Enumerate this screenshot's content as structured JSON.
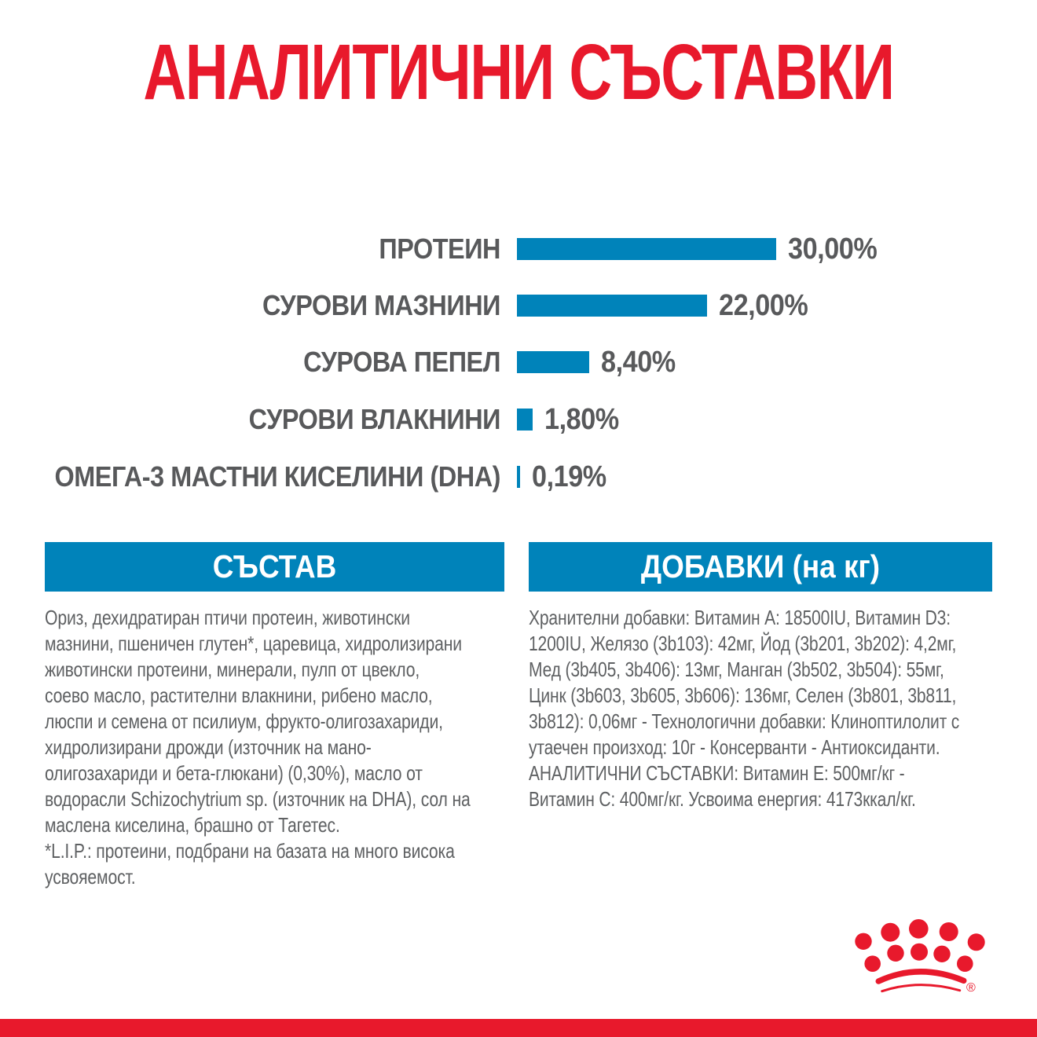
{
  "title": "АНАЛИТИЧНИ СЪСТАВКИ",
  "colors": {
    "brand_red": "#e8192c",
    "bar_blue": "#0083ba",
    "label_gray": "#58595b",
    "body_gray": "#5f6163",
    "header_text": "#ffffff"
  },
  "chart_data": {
    "type": "bar",
    "orientation": "horizontal",
    "title": "АНАЛИТИЧНИ СЪСТАВКИ",
    "categories": [
      "ПРОТЕИН",
      "СУРОВИ МАЗНИНИ",
      "СУРОВА ПЕПЕЛ",
      "СУРОВИ ВЛАКНИНИ",
      "ОМЕГА-3 МАСТНИ КИСЕЛИНИ (DHA)"
    ],
    "values": [
      30.0,
      22.0,
      8.4,
      1.8,
      0.19
    ],
    "value_labels": [
      "30,00%",
      "22,00%",
      "8,40%",
      "1,80%",
      "0,19%"
    ],
    "unit": "%",
    "xlim": [
      0,
      30
    ],
    "bar_color": "#0083ba",
    "grid": false,
    "legend": false
  },
  "sections": {
    "composition": {
      "header": "СЪСТАВ",
      "body": "Ориз, дехидратиран птичи протеин, животински\nмазнини, пшеничен глутен*, царевица, хидролизирани\nживотински протеини, минерали, пулп от цвекло,\nсоево масло, растителни влакнини, рибено масло,\nлюспи и семена от псилиум, фрукто-олигозахариди,\nхидролизирани дрожди (източник на мано-\nолигозахариди и бета-глюкани) (0,30%), масло от\nводорасли Schizochytrium sp. (източник на DHA), сол на\nмаслена киселина, брашно от Тагетес.\n*L.I.P.: протеини, подбрани на базата на много висока\nусвояемост."
    },
    "additives": {
      "header": "ДОБАВКИ (на кг)",
      "body": "Хранителни добавки: Витамин A: 18500IU, Витамин D3:\n1200IU, Желязо (3b103): 42мг, Йод (3b201, 3b202): 4,2мг,\nМед (3b405, 3b406): 13мг, Манган (3b502, 3b504): 55мг,\nЦинк (3b603, 3b605, 3b606): 136мг, Селен (3b801, 3b811,\n3b812): 0,06мг - Технологични добавки: Клиноптилолит с\nутаечен произход: 10г - Консерванти - Антиоксиданти.\nАНАЛИТИЧНИ СЪСТАВКИ: Витамин E: 500мг/кг -\nВитамин C: 400мг/кг. Усвоима енергия: 4173ккал/кг."
    }
  },
  "logo": {
    "name": "royal-canin-crown-logo",
    "registered_mark": "®"
  }
}
